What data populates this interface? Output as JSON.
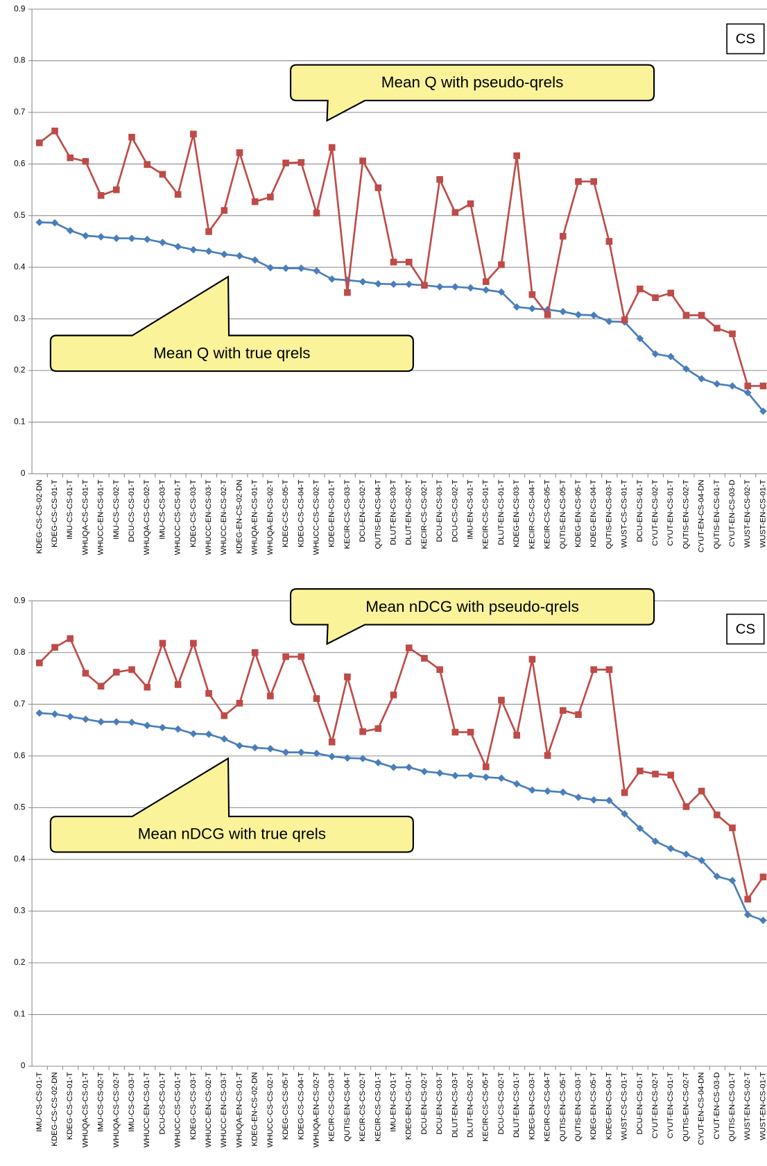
{
  "chart_data": [
    {
      "type": "line",
      "grid": true,
      "ylim": [
        0,
        0.9
      ],
      "yticks": [
        0,
        0.1,
        0.2,
        0.3,
        0.4,
        0.5,
        0.6,
        0.7,
        0.8,
        0.9
      ],
      "annotation": "CS",
      "categories": [
        "KDEG-CS-CS-02-DN",
        "KDEG-CS-CS-01-T",
        "IMU-CS-CS-01-T",
        "WHUQA-CS-CS-01-T",
        "WHUCC-EN-CS-01-T",
        "IMU-CS-CS-02-T",
        "DCU-CS-CS-01-T",
        "WHUQA-CS-CS-02-T",
        "IMU-CS-CS-03-T",
        "WHUCC-CS-CS-01-T",
        "KDEG-CS-CS-03-T",
        "WHUCC-EN-CS-03-T",
        "WHUCC-EN-CS-02-T",
        "KDEG-EN-CS-02-DN",
        "WHUQA-EN-CS-01-T",
        "WHUQA-EN-CS-02-T",
        "KDEG-CS-CS-05-T",
        "KDEG-CS-CS-04-T",
        "WHUCC-CS-CS-02-T",
        "KDEG-EN-CS-01-T",
        "KECIR-CS-CS-03-T",
        "DCU-EN-CS-02-T",
        "QUTIS-EN-CS-04-T",
        "DLUT-EN-CS-03-T",
        "DLUT-EN-CS-02-T",
        "KECIR-CS-CS-02-T",
        "DCU-EN-CS-03-T",
        "DCU-CS-CS-02-T",
        "IMU-EN-CS-01-T",
        "KECIR-CS-CS-01-T",
        "DLUT-EN-CS-01-T",
        "KDEG-EN-CS-03-T",
        "KECIR-CS-CS-04-T",
        "KECIR-CS-CS-05-T",
        "QUTIS-EN-CS-05-T",
        "KDEG-EN-CS-05-T",
        "KDEG-EN-CS-04-T",
        "QUTIS-EN-CS-03-T",
        "WUST-CS-CS-01-T",
        "DCU-EN-CS-01-T",
        "CYUT-EN-CS-02-T",
        "CYUT-EN-CS-01-T",
        "QUTIS-EN-CS-02-T",
        "CYUT-EN-CS-04-DN",
        "QUTIS-EN-CS-01-T",
        "CYUT-EN-CS-03-D",
        "WUST-EN-CS-02-T",
        "WUST-EN-CS-01-T"
      ],
      "series": [
        {
          "name": "Mean Q with true qrels",
          "color": "#4a7ebb",
          "marker": "diamond",
          "values": [
            0.487,
            0.486,
            0.471,
            0.461,
            0.459,
            0.456,
            0.456,
            0.454,
            0.448,
            0.44,
            0.434,
            0.431,
            0.425,
            0.422,
            0.414,
            0.399,
            0.398,
            0.398,
            0.393,
            0.377,
            0.375,
            0.372,
            0.368,
            0.367,
            0.367,
            0.365,
            0.362,
            0.362,
            0.36,
            0.356,
            0.352,
            0.323,
            0.32,
            0.318,
            0.314,
            0.308,
            0.307,
            0.295,
            0.294,
            0.262,
            0.232,
            0.227,
            0.203,
            0.184,
            0.174,
            0.17,
            0.157,
            0.121
          ]
        },
        {
          "name": "Mean Q with pseudo-qrels",
          "color": "#be4b48",
          "marker": "square",
          "values": [
            0.641,
            0.664,
            0.612,
            0.605,
            0.539,
            0.55,
            0.652,
            0.599,
            0.58,
            0.541,
            0.658,
            0.469,
            0.51,
            0.622,
            0.527,
            0.536,
            0.602,
            0.603,
            0.505,
            0.632,
            0.351,
            0.606,
            0.554,
            0.41,
            0.41,
            0.365,
            0.57,
            0.506,
            0.523,
            0.372,
            0.405,
            0.616,
            0.347,
            0.308,
            0.46,
            0.566,
            0.566,
            0.45,
            0.298,
            0.358,
            0.341,
            0.35,
            0.307,
            0.307,
            0.282,
            0.271,
            0.17,
            0.17
          ]
        }
      ]
    },
    {
      "type": "line",
      "grid": true,
      "ylim": [
        0,
        0.9
      ],
      "yticks": [
        0,
        0.1,
        0.2,
        0.3,
        0.4,
        0.5,
        0.6,
        0.7,
        0.8,
        0.9
      ],
      "annotation": "CS",
      "categories": [
        "IMU-CS-CS-01-T",
        "KDEG-CS-CS-02-DN",
        "KDEG-CS-CS-01-T",
        "WHUQA-CS-CS-01-T",
        "IMU-CS-CS-02-T",
        "WHUQA-CS-CS-02-T",
        "IMU-CS-CS-03-T",
        "WHUCC-EN-CS-01-T",
        "DCU-CS-CS-01-T",
        "WHUCC-CS-CS-01-T",
        "KDEG-CS-CS-03-T",
        "WHUCC-EN-CS-02-T",
        "WHUCC-EN-CS-03-T",
        "WHUQA-EN-CS-01-T",
        "KDEG-EN-CS-02-DN",
        "WHUCC-CS-CS-02-T",
        "KDEG-CS-CS-05-T",
        "KDEG-CS-CS-04-T",
        "WHUQA-EN-CS-02-T",
        "KECIR-CS-CS-03-T",
        "QUTIS-EN-CS-04-T",
        "KECIR-CS-CS-02-T",
        "KECIR-CS-CS-01-T",
        "IMU-EN-CS-01-T",
        "KDEG-EN-CS-01-T",
        "DCU-EN-CS-02-T",
        "DCU-EN-CS-03-T",
        "DLUT-EN-CS-03-T",
        "DLUT-EN-CS-02-T",
        "KECIR-CS-CS-05-T",
        "DCU-CS-CS-02-T",
        "DLUT-EN-CS-01-T",
        "KDEG-EN-CS-03-T",
        "KECIR-CS-CS-04-T",
        "QUTIS-EN-CS-05-T",
        "QUTIS-EN-CS-03-T",
        "KDEG-EN-CS-05-T",
        "KDEG-EN-CS-04-T",
        "WUST-CS-CS-01-T",
        "DCU-EN-CS-01-T",
        "CYUT-EN-CS-02-T",
        "CYUT-EN-CS-01-T",
        "QUTIS-EN-CS-02-T",
        "CYUT-EN-CS-04-DN",
        "CYUT-EN-CS-03-D",
        "QUTIS-EN-CS-01-T",
        "WUST-EN-CS-02-T",
        "WUST-EN-CS-01-T"
      ],
      "series": [
        {
          "name": "Mean nDCG with true qrels",
          "color": "#4a7ebb",
          "marker": "diamond",
          "values": [
            0.683,
            0.681,
            0.676,
            0.671,
            0.666,
            0.666,
            0.665,
            0.659,
            0.655,
            0.652,
            0.643,
            0.642,
            0.633,
            0.62,
            0.616,
            0.614,
            0.607,
            0.607,
            0.605,
            0.599,
            0.596,
            0.595,
            0.587,
            0.578,
            0.578,
            0.57,
            0.567,
            0.562,
            0.562,
            0.559,
            0.557,
            0.546,
            0.534,
            0.532,
            0.53,
            0.52,
            0.515,
            0.514,
            0.488,
            0.46,
            0.435,
            0.421,
            0.41,
            0.398,
            0.367,
            0.359,
            0.293,
            0.282
          ]
        },
        {
          "name": "Mean nDCG with pseudo-qrels",
          "color": "#be4b48",
          "marker": "square",
          "values": [
            0.78,
            0.81,
            0.827,
            0.76,
            0.735,
            0.762,
            0.767,
            0.733,
            0.818,
            0.738,
            0.818,
            0.721,
            0.678,
            0.702,
            0.8,
            0.716,
            0.792,
            0.792,
            0.711,
            0.627,
            0.753,
            0.647,
            0.653,
            0.718,
            0.809,
            0.789,
            0.767,
            0.646,
            0.646,
            0.579,
            0.708,
            0.64,
            0.787,
            0.601,
            0.688,
            0.68,
            0.767,
            0.767,
            0.529,
            0.571,
            0.565,
            0.563,
            0.502,
            0.532,
            0.486,
            0.461,
            0.323,
            0.366
          ]
        }
      ]
    }
  ]
}
